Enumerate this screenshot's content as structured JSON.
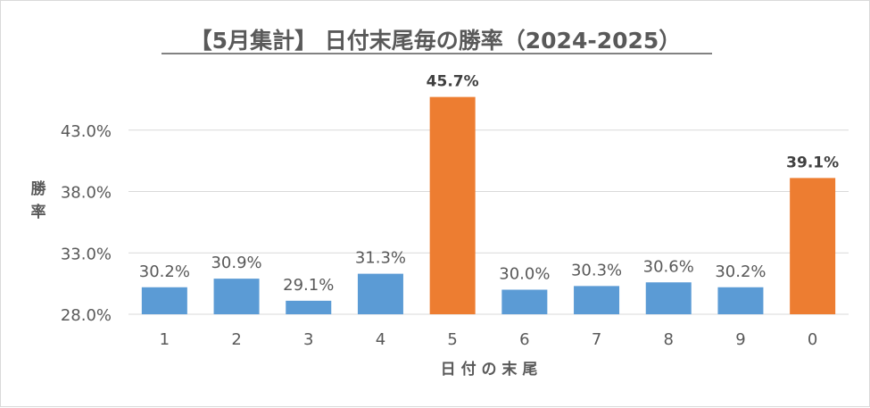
{
  "chart_data": {
    "type": "bar",
    "title": "【5月集計】 日付末尾毎の勝率（2024-2025）",
    "xlabel": "日 付 の 末 尾",
    "ylabel": "勝率",
    "categories": [
      "1",
      "2",
      "3",
      "4",
      "5",
      "6",
      "7",
      "8",
      "9",
      "0"
    ],
    "values": [
      30.2,
      30.9,
      29.1,
      31.3,
      45.7,
      30.0,
      30.3,
      30.6,
      30.2,
      39.1
    ],
    "data_labels": [
      "30.2%",
      "30.9%",
      "29.1%",
      "31.3%",
      "45.7%",
      "30.0%",
      "30.3%",
      "30.6%",
      "30.2%",
      "39.1%"
    ],
    "highlighted": [
      false,
      false,
      false,
      false,
      true,
      false,
      false,
      false,
      false,
      true
    ],
    "ylim": [
      28,
      48
    ],
    "yticks": [
      28,
      33,
      38,
      43
    ],
    "ytick_labels": [
      "28.0%",
      "33.0%",
      "38.0%",
      "43.0%"
    ],
    "grid": true,
    "legend": "none",
    "colors": {
      "normal": "#5b9bd5",
      "highlight": "#ed7d31",
      "text": "#595959",
      "grid": "#d9d9d9"
    }
  }
}
